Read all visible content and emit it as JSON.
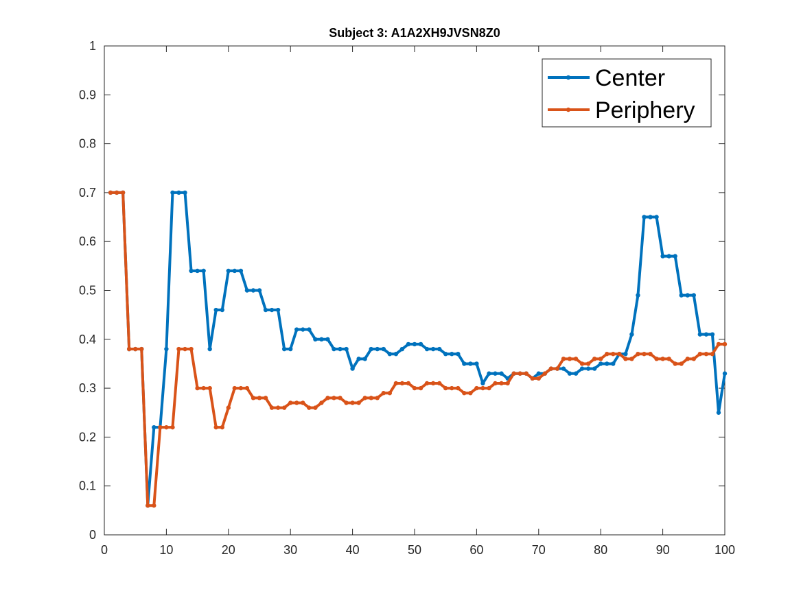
{
  "chart_data": {
    "type": "line",
    "title": "Subject 3: A1A2XH9JVSN8Z0",
    "xlabel": "",
    "ylabel": "",
    "xlim": [
      0,
      100
    ],
    "ylim": [
      0,
      1
    ],
    "xticks": [
      "0",
      "10",
      "20",
      "30",
      "40",
      "50",
      "60",
      "70",
      "80",
      "90",
      "100"
    ],
    "yticks": [
      "0",
      "0.1",
      "0.2",
      "0.3",
      "0.4",
      "0.5",
      "0.6",
      "0.7",
      "0.8",
      "0.9",
      "1"
    ],
    "grid": false,
    "legend_position": "top-right",
    "x": [
      1,
      2,
      3,
      4,
      5,
      6,
      7,
      8,
      9,
      10,
      11,
      12,
      13,
      14,
      15,
      16,
      17,
      18,
      19,
      20,
      21,
      22,
      23,
      24,
      25,
      26,
      27,
      28,
      29,
      30,
      31,
      32,
      33,
      34,
      35,
      36,
      37,
      38,
      39,
      40,
      41,
      42,
      43,
      44,
      45,
      46,
      47,
      48,
      49,
      50,
      51,
      52,
      53,
      54,
      55,
      56,
      57,
      58,
      59,
      60,
      61,
      62,
      63,
      64,
      65,
      66,
      67,
      68,
      69,
      70,
      71,
      72,
      73,
      74,
      75,
      76,
      77,
      78,
      79,
      80,
      81,
      82,
      83,
      84,
      85,
      86,
      87,
      88,
      89,
      90,
      91,
      92,
      93,
      94,
      95,
      96,
      97,
      98,
      99,
      100
    ],
    "series": [
      {
        "name": "Center",
        "color": "#0072BD",
        "values": [
          0.7,
          0.7,
          0.7,
          0.38,
          0.38,
          0.38,
          0.06,
          0.22,
          0.22,
          0.38,
          0.7,
          0.7,
          0.7,
          0.54,
          0.54,
          0.54,
          0.38,
          0.46,
          0.46,
          0.54,
          0.54,
          0.54,
          0.5,
          0.5,
          0.5,
          0.46,
          0.46,
          0.46,
          0.38,
          0.38,
          0.42,
          0.42,
          0.42,
          0.4,
          0.4,
          0.4,
          0.38,
          0.38,
          0.38,
          0.34,
          0.36,
          0.36,
          0.38,
          0.38,
          0.38,
          0.37,
          0.37,
          0.38,
          0.39,
          0.39,
          0.39,
          0.38,
          0.38,
          0.38,
          0.37,
          0.37,
          0.37,
          0.35,
          0.35,
          0.35,
          0.31,
          0.33,
          0.33,
          0.33,
          0.32,
          0.33,
          0.33,
          0.33,
          0.32,
          0.33,
          0.33,
          0.34,
          0.34,
          0.34,
          0.33,
          0.33,
          0.34,
          0.34,
          0.34,
          0.35,
          0.35,
          0.35,
          0.37,
          0.37,
          0.41,
          0.49,
          0.65,
          0.65,
          0.65,
          0.57,
          0.57,
          0.57,
          0.49,
          0.49,
          0.49,
          0.41,
          0.41,
          0.41,
          0.25,
          0.33
        ]
      },
      {
        "name": "Periphery",
        "color": "#D95319",
        "values": [
          0.7,
          0.7,
          0.7,
          0.38,
          0.38,
          0.38,
          0.06,
          0.06,
          0.22,
          0.22,
          0.22,
          0.38,
          0.38,
          0.38,
          0.3,
          0.3,
          0.3,
          0.22,
          0.22,
          0.26,
          0.3,
          0.3,
          0.3,
          0.28,
          0.28,
          0.28,
          0.26,
          0.26,
          0.26,
          0.27,
          0.27,
          0.27,
          0.26,
          0.26,
          0.27,
          0.28,
          0.28,
          0.28,
          0.27,
          0.27,
          0.27,
          0.28,
          0.28,
          0.28,
          0.29,
          0.29,
          0.31,
          0.31,
          0.31,
          0.3,
          0.3,
          0.31,
          0.31,
          0.31,
          0.3,
          0.3,
          0.3,
          0.29,
          0.29,
          0.3,
          0.3,
          0.3,
          0.31,
          0.31,
          0.31,
          0.33,
          0.33,
          0.33,
          0.32,
          0.32,
          0.33,
          0.34,
          0.34,
          0.36,
          0.36,
          0.36,
          0.35,
          0.35,
          0.36,
          0.36,
          0.37,
          0.37,
          0.37,
          0.36,
          0.36,
          0.37,
          0.37,
          0.37,
          0.36,
          0.36,
          0.36,
          0.35,
          0.35,
          0.36,
          0.36,
          0.37,
          0.37,
          0.37,
          0.39,
          0.39
        ]
      }
    ]
  }
}
